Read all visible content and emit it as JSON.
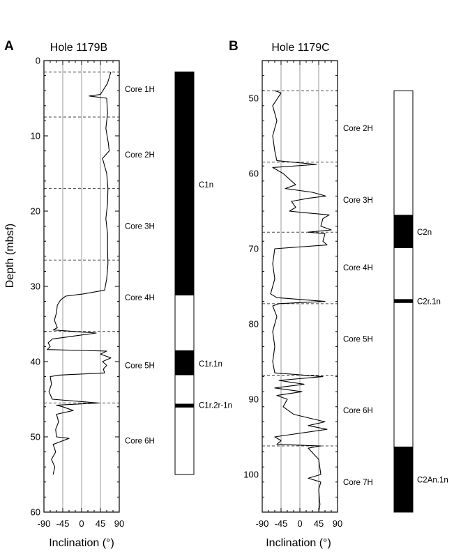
{
  "chart_data": [
    {
      "type": "line",
      "panel_label": "A",
      "title": "Hole 1179B",
      "xlabel": "Inclination (°)",
      "ylabel": "Depth (mbsf)",
      "xlim": [
        -90,
        90
      ],
      "ylim": [
        0,
        60
      ],
      "y_inverted": true,
      "x_ticks": [
        -90,
        -45,
        0,
        45,
        90
      ],
      "x_tick_labels": [
        "-90",
        "-45",
        "0",
        "45",
        "90"
      ],
      "y_ticks": [
        0,
        10,
        20,
        30,
        40,
        50,
        60
      ],
      "y_tick_labels": [
        "0",
        "10",
        "20",
        "30",
        "40",
        "50",
        "60"
      ],
      "vertical_gridlines_at": [
        -45,
        0,
        45
      ],
      "core_boundaries": [
        1.5,
        7.5,
        17.0,
        26.5,
        36.0,
        45.5
      ],
      "cores": [
        {
          "label": "Core 1H",
          "depth": 3.8
        },
        {
          "label": "Core 2H",
          "depth": 12.5
        },
        {
          "label": "Core 3H",
          "depth": 22.0
        },
        {
          "label": "Core 4H",
          "depth": 31.5
        },
        {
          "label": "Core 5H",
          "depth": 40.5
        },
        {
          "label": "Core 6H",
          "depth": 50.5
        }
      ],
      "series": [
        {
          "depth": [
            1.5,
            3,
            4.5,
            4.7,
            5,
            7,
            9,
            11,
            12,
            13,
            15,
            17,
            19,
            21,
            23,
            25,
            27,
            29,
            30.5,
            31.0,
            31.3,
            31.8,
            32.5,
            33.5,
            34.5,
            35.5,
            35.8,
            36.2,
            37,
            37.5,
            38,
            38.4,
            38.6,
            39,
            39.5,
            40,
            40.5,
            41,
            41.5,
            41.8,
            42,
            43,
            44,
            45,
            45.5,
            45.8,
            46,
            46.5,
            47,
            48,
            49,
            50,
            50.2,
            51,
            52,
            53,
            54,
            55
          ],
          "inclination": [
            70,
            62,
            45,
            18,
            60,
            62,
            58,
            64,
            66,
            50,
            60,
            63,
            62,
            58,
            62,
            62,
            63,
            60,
            55,
            5,
            -38,
            -50,
            -58,
            -60,
            -65,
            -58,
            -68,
            35,
            -70,
            -80,
            -75,
            -82,
            60,
            45,
            70,
            50,
            60,
            52,
            55,
            -55,
            -75,
            -72,
            -78,
            -70,
            40,
            -60,
            -45,
            -20,
            -60,
            -55,
            -62,
            -60,
            -30,
            -68,
            -62,
            -72,
            -64,
            -68
          ]
        }
      ],
      "polarity": {
        "depth_range": [
          1.5,
          55
        ],
        "normal_intervals": [
          [
            1.5,
            31.2
          ],
          [
            38.5,
            41.8
          ],
          [
            45.6,
            46.1
          ]
        ],
        "chrons": [
          {
            "label": "C1n",
            "depth": 16.5
          },
          {
            "label": "C1r.1n",
            "depth": 40.3
          },
          {
            "label": "C1r.2r-1n",
            "depth": 45.8
          }
        ]
      }
    },
    {
      "type": "line",
      "panel_label": "B",
      "title": "Hole 1179C",
      "xlabel": "Inclination (°)",
      "ylabel": "",
      "xlim": [
        -90,
        90
      ],
      "ylim": [
        45,
        105
      ],
      "y_inverted": true,
      "x_ticks": [
        -90,
        -45,
        0,
        45,
        90
      ],
      "x_tick_labels": [
        "-90",
        "-45",
        "0",
        "45",
        "90"
      ],
      "y_ticks": [
        50,
        60,
        70,
        80,
        90,
        100
      ],
      "y_tick_labels": [
        "50",
        "60",
        "70",
        "80",
        "90",
        "100"
      ],
      "vertical_gridlines_at": [
        -45,
        0,
        45
      ],
      "core_boundaries": [
        49.0,
        58.5,
        67.8,
        77.3,
        86.8,
        96.2
      ],
      "cores": [
        {
          "label": "Core 2H",
          "depth": 54
        },
        {
          "label": "Core 3H",
          "depth": 63.5
        },
        {
          "label": "Core 4H",
          "depth": 72.5
        },
        {
          "label": "Core 5H",
          "depth": 82
        },
        {
          "label": "Core 6H",
          "depth": 91.5
        },
        {
          "label": "Core 7H",
          "depth": 101
        }
      ],
      "series": [
        {
          "depth": [
            49,
            49.3,
            51,
            53,
            55,
            57,
            58.3,
            58.8,
            59.2,
            60,
            61,
            61.5,
            62,
            62.5,
            63,
            63.3,
            63.7,
            64.5,
            65,
            65.2,
            65.5,
            66,
            67,
            67.5,
            67.8,
            68,
            69,
            69.5,
            70,
            72,
            74,
            76,
            76.5,
            77,
            77.3,
            77.6,
            79,
            81,
            83,
            85,
            86.5,
            87,
            87.5,
            88,
            88.5,
            89,
            89.5,
            90,
            91,
            92,
            93,
            93.5,
            94,
            95,
            95.5,
            96,
            96.2,
            96.5,
            98,
            100,
            100.5,
            101,
            102,
            104,
            105
          ],
          "inclination": [
            -60,
            -45,
            -65,
            -55,
            -65,
            -60,
            -55,
            40,
            -65,
            -40,
            -20,
            -10,
            -35,
            30,
            62,
            20,
            -20,
            -10,
            -25,
            10,
            70,
            55,
            50,
            75,
            20,
            60,
            55,
            65,
            -60,
            -65,
            -60,
            -70,
            -55,
            60,
            -50,
            -65,
            -55,
            -65,
            -60,
            -65,
            -60,
            55,
            -50,
            10,
            -60,
            5,
            -55,
            -30,
            -40,
            -15,
            60,
            20,
            65,
            -60,
            -45,
            -55,
            50,
            20,
            45,
            50,
            20,
            50,
            45,
            48,
            45
          ]
        }
      ],
      "polarity": {
        "depth_range": [
          49,
          105
        ],
        "normal_intervals": [
          [
            65.5,
            69.9
          ],
          [
            76.7,
            77.2
          ],
          [
            96.3,
            105
          ]
        ],
        "chrons": [
          {
            "label": "C2n",
            "depth": 67.8
          },
          {
            "label": "C2r.1n",
            "depth": 77.0
          },
          {
            "label": "C2An.1n",
            "depth": 100.7
          }
        ]
      }
    }
  ]
}
